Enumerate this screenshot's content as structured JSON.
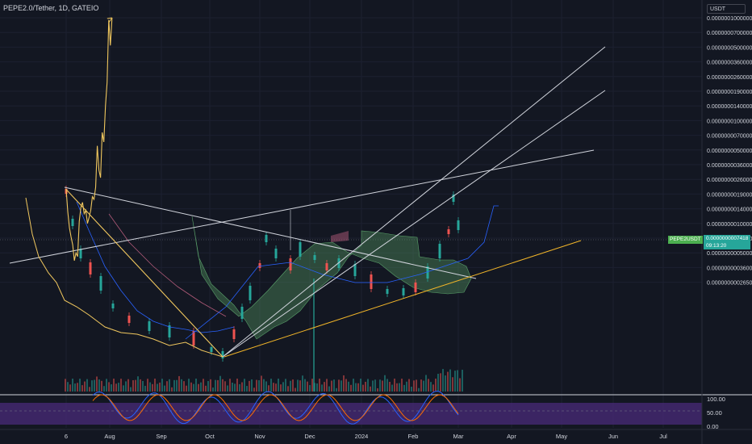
{
  "header": {
    "title": "PEPE2.0/Tether, 1D, GATEIO",
    "currency": "USDT"
  },
  "price_tag": {
    "symbol": "PEPE2USDT",
    "value": "0.0000000007418",
    "countdown": "09:13:20"
  },
  "colors": {
    "background": "#131722",
    "price_line": "#f0c75e",
    "trend_lines": "#d1d4dc",
    "support_line": "#f0b429",
    "cloud_fill": "#4e8a5b",
    "kumo_red": "#b05a78",
    "blue_line": "#2962ff",
    "candle_up": "#26a69a",
    "candle_down": "#ef5350",
    "rsi_band": "#4a2b7a",
    "rsi_line_k": "#2962ff",
    "rsi_line_d": "#ff6d00"
  },
  "chart_data": {
    "type": "line",
    "title": "PEPE2.0/Tether, 1D, GATEIO",
    "scale": "log",
    "x_tick_labels": [
      "6",
      "Aug",
      "Sep",
      "Oct",
      "Nov",
      "Dec",
      "2024",
      "Feb",
      "Mar",
      "Apr",
      "May",
      "Jun",
      "Jul"
    ],
    "y_tick_labels": [
      "0.0000001000000",
      "0.0000000700000",
      "0.0000000500000",
      "0.0000000360000",
      "0.0000000260000",
      "0.0000000190000",
      "0.0000000140000",
      "0.0000000100000",
      "0.0000000070000",
      "0.0000000050000",
      "0.0000000036000",
      "0.0000000026000",
      "0.0000000019000",
      "0.0000000014000",
      "0.0000000010000",
      "0.0000000007000",
      "0.0000000005000",
      "0.0000000003600",
      "0.0000000002650"
    ],
    "last_price": 7.418e-10,
    "series": [
      {
        "values": [
          [
            0,
            2.1e-09
          ],
          [
            1,
            1.3e-09
          ],
          [
            2,
            9e-10
          ],
          [
            3,
            7.2e-10
          ],
          [
            4,
            6e-10
          ],
          [
            5,
            4.2e-10
          ],
          [
            6,
            5e-10
          ],
          [
            7,
            4.6e-10
          ],
          [
            8,
            1.05e-09
          ],
          [
            9,
            1.45e-09
          ],
          [
            10,
            1.6e-09
          ],
          [
            11,
            1.25e-09
          ],
          [
            12,
            1.35e-09
          ],
          [
            13,
            1e-09
          ],
          [
            14,
            1.15e-09
          ],
          [
            15,
            1.35e-09
          ],
          [
            16,
            1.8e-09
          ],
          [
            17,
            1.7e-09
          ],
          [
            18,
            2.2e-09
          ],
          [
            19,
            5.5e-09
          ],
          [
            20,
            3.2e-09
          ],
          [
            21,
            2.7e-09
          ],
          [
            22,
            7.5e-09
          ],
          [
            23,
            6e-09
          ],
          [
            24,
            1.4e-08
          ],
          [
            25,
            2.3e-08
          ],
          [
            26,
            9.5e-08
          ],
          [
            27,
            5.2e-08
          ],
          [
            28,
            1.1e-07
          ]
        ]
      }
    ],
    "rsi_tick_labels": [
      "100.00",
      "50.00",
      "0.00"
    ]
  }
}
